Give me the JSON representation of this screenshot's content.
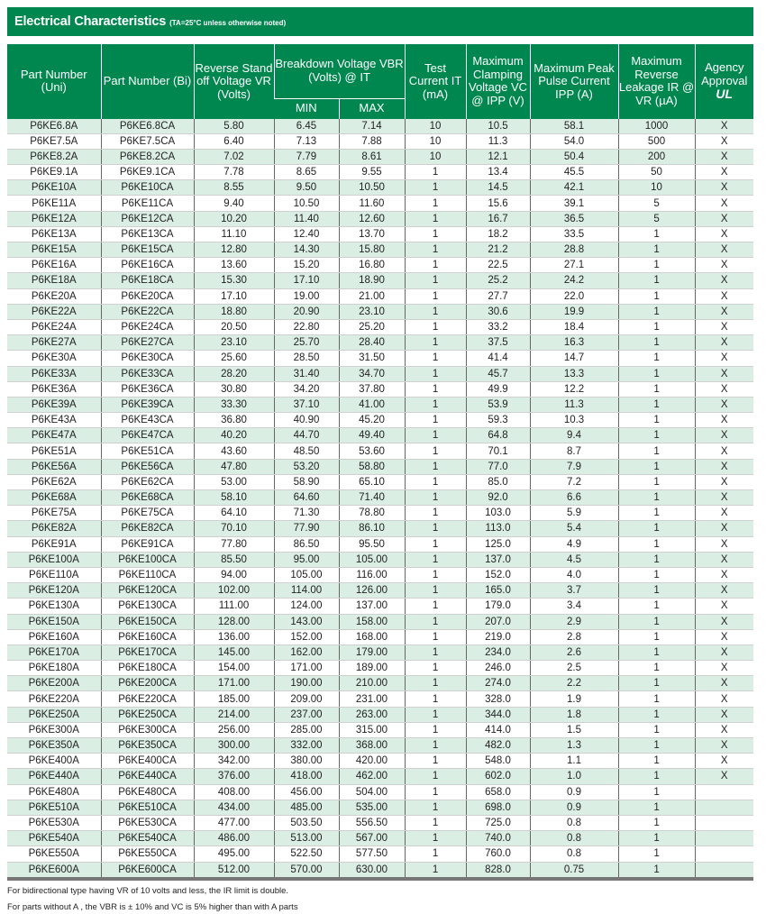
{
  "title": "Electrical Characteristics",
  "title_condition": "(TA=25°C unless otherwise noted)",
  "header": {
    "part_uni": "Part Number (Uni)",
    "part_bi": "Part Number (Bi)",
    "vr": "Reverse Stand off Voltage VR (Volts)",
    "vbr": "Breakdown Voltage VBR (Volts) @ IT",
    "min": "MIN",
    "max": "MAX",
    "it": "Test Current IT (mA)",
    "vc": "Maximum Clamping Voltage VC @ IPP (V)",
    "ipp": "Maximum Peak Pulse Current IPP (A)",
    "ir": "Maximum Reverse Leakage IR @ VR (µA)",
    "agency": "Agency Approval",
    "agency_logo": "UL"
  },
  "colors": {
    "header": "#00874f",
    "row_alt": "#dbeee4"
  },
  "rows": [
    [
      "P6KE6.8A",
      "P6KE6.8CA",
      "5.80",
      "6.45",
      "7.14",
      "10",
      "10.5",
      "58.1",
      "1000",
      "X"
    ],
    [
      "P6KE7.5A",
      "P6KE7.5CA",
      "6.40",
      "7.13",
      "7.88",
      "10",
      "11.3",
      "54.0",
      "500",
      "X"
    ],
    [
      "P6KE8.2A",
      "P6KE8.2CA",
      "7.02",
      "7.79",
      "8.61",
      "10",
      "12.1",
      "50.4",
      "200",
      "X"
    ],
    [
      "P6KE9.1A",
      "P6KE9.1CA",
      "7.78",
      "8.65",
      "9.55",
      "1",
      "13.4",
      "45.5",
      "50",
      "X"
    ],
    [
      "P6KE10A",
      "P6KE10CA",
      "8.55",
      "9.50",
      "10.50",
      "1",
      "14.5",
      "42.1",
      "10",
      "X"
    ],
    [
      "P6KE11A",
      "P6KE11CA",
      "9.40",
      "10.50",
      "11.60",
      "1",
      "15.6",
      "39.1",
      "5",
      "X"
    ],
    [
      "P6KE12A",
      "P6KE12CA",
      "10.20",
      "11.40",
      "12.60",
      "1",
      "16.7",
      "36.5",
      "5",
      "X"
    ],
    [
      "P6KE13A",
      "P6KE13CA",
      "11.10",
      "12.40",
      "13.70",
      "1",
      "18.2",
      "33.5",
      "1",
      "X"
    ],
    [
      "P6KE15A",
      "P6KE15CA",
      "12.80",
      "14.30",
      "15.80",
      "1",
      "21.2",
      "28.8",
      "1",
      "X"
    ],
    [
      "P6KE16A",
      "P6KE16CA",
      "13.60",
      "15.20",
      "16.80",
      "1",
      "22.5",
      "27.1",
      "1",
      "X"
    ],
    [
      "P6KE18A",
      "P6KE18CA",
      "15.30",
      "17.10",
      "18.90",
      "1",
      "25.2",
      "24.2",
      "1",
      "X"
    ],
    [
      "P6KE20A",
      "P6KE20CA",
      "17.10",
      "19.00",
      "21.00",
      "1",
      "27.7",
      "22.0",
      "1",
      "X"
    ],
    [
      "P6KE22A",
      "P6KE22CA",
      "18.80",
      "20.90",
      "23.10",
      "1",
      "30.6",
      "19.9",
      "1",
      "X"
    ],
    [
      "P6KE24A",
      "P6KE24CA",
      "20.50",
      "22.80",
      "25.20",
      "1",
      "33.2",
      "18.4",
      "1",
      "X"
    ],
    [
      "P6KE27A",
      "P6KE27CA",
      "23.10",
      "25.70",
      "28.40",
      "1",
      "37.5",
      "16.3",
      "1",
      "X"
    ],
    [
      "P6KE30A",
      "P6KE30CA",
      "25.60",
      "28.50",
      "31.50",
      "1",
      "41.4",
      "14.7",
      "1",
      "X"
    ],
    [
      "P6KE33A",
      "P6KE33CA",
      "28.20",
      "31.40",
      "34.70",
      "1",
      "45.7",
      "13.3",
      "1",
      "X"
    ],
    [
      "P6KE36A",
      "P6KE36CA",
      "30.80",
      "34.20",
      "37.80",
      "1",
      "49.9",
      "12.2",
      "1",
      "X"
    ],
    [
      "P6KE39A",
      "P6KE39CA",
      "33.30",
      "37.10",
      "41.00",
      "1",
      "53.9",
      "11.3",
      "1",
      "X"
    ],
    [
      "P6KE43A",
      "P6KE43CA",
      "36.80",
      "40.90",
      "45.20",
      "1",
      "59.3",
      "10.3",
      "1",
      "X"
    ],
    [
      "P6KE47A",
      "P6KE47CA",
      "40.20",
      "44.70",
      "49.40",
      "1",
      "64.8",
      "9.4",
      "1",
      "X"
    ],
    [
      "P6KE51A",
      "P6KE51CA",
      "43.60",
      "48.50",
      "53.60",
      "1",
      "70.1",
      "8.7",
      "1",
      "X"
    ],
    [
      "P6KE56A",
      "P6KE56CA",
      "47.80",
      "53.20",
      "58.80",
      "1",
      "77.0",
      "7.9",
      "1",
      "X"
    ],
    [
      "P6KE62A",
      "P6KE62CA",
      "53.00",
      "58.90",
      "65.10",
      "1",
      "85.0",
      "7.2",
      "1",
      "X"
    ],
    [
      "P6KE68A",
      "P6KE68CA",
      "58.10",
      "64.60",
      "71.40",
      "1",
      "92.0",
      "6.6",
      "1",
      "X"
    ],
    [
      "P6KE75A",
      "P6KE75CA",
      "64.10",
      "71.30",
      "78.80",
      "1",
      "103.0",
      "5.9",
      "1",
      "X"
    ],
    [
      "P6KE82A",
      "P6KE82CA",
      "70.10",
      "77.90",
      "86.10",
      "1",
      "113.0",
      "5.4",
      "1",
      "X"
    ],
    [
      "P6KE91A",
      "P6KE91CA",
      "77.80",
      "86.50",
      "95.50",
      "1",
      "125.0",
      "4.9",
      "1",
      "X"
    ],
    [
      "P6KE100A",
      "P6KE100CA",
      "85.50",
      "95.00",
      "105.00",
      "1",
      "137.0",
      "4.5",
      "1",
      "X"
    ],
    [
      "P6KE110A",
      "P6KE110CA",
      "94.00",
      "105.00",
      "116.00",
      "1",
      "152.0",
      "4.0",
      "1",
      "X"
    ],
    [
      "P6KE120A",
      "P6KE120CA",
      "102.00",
      "114.00",
      "126.00",
      "1",
      "165.0",
      "3.7",
      "1",
      "X"
    ],
    [
      "P6KE130A",
      "P6KE130CA",
      "111.00",
      "124.00",
      "137.00",
      "1",
      "179.0",
      "3.4",
      "1",
      "X"
    ],
    [
      "P6KE150A",
      "P6KE150CA",
      "128.00",
      "143.00",
      "158.00",
      "1",
      "207.0",
      "2.9",
      "1",
      "X"
    ],
    [
      "P6KE160A",
      "P6KE160CA",
      "136.00",
      "152.00",
      "168.00",
      "1",
      "219.0",
      "2.8",
      "1",
      "X"
    ],
    [
      "P6KE170A",
      "P6KE170CA",
      "145.00",
      "162.00",
      "179.00",
      "1",
      "234.0",
      "2.6",
      "1",
      "X"
    ],
    [
      "P6KE180A",
      "P6KE180CA",
      "154.00",
      "171.00",
      "189.00",
      "1",
      "246.0",
      "2.5",
      "1",
      "X"
    ],
    [
      "P6KE200A",
      "P6KE200CA",
      "171.00",
      "190.00",
      "210.00",
      "1",
      "274.0",
      "2.2",
      "1",
      "X"
    ],
    [
      "P6KE220A",
      "P6KE220CA",
      "185.00",
      "209.00",
      "231.00",
      "1",
      "328.0",
      "1.9",
      "1",
      "X"
    ],
    [
      "P6KE250A",
      "P6KE250CA",
      "214.00",
      "237.00",
      "263.00",
      "1",
      "344.0",
      "1.8",
      "1",
      "X"
    ],
    [
      "P6KE300A",
      "P6KE300CA",
      "256.00",
      "285.00",
      "315.00",
      "1",
      "414.0",
      "1.5",
      "1",
      "X"
    ],
    [
      "P6KE350A",
      "P6KE350CA",
      "300.00",
      "332.00",
      "368.00",
      "1",
      "482.0",
      "1.3",
      "1",
      "X"
    ],
    [
      "P6KE400A",
      "P6KE400CA",
      "342.00",
      "380.00",
      "420.00",
      "1",
      "548.0",
      "1.1",
      "1",
      "X"
    ],
    [
      "P6KE440A",
      "P6KE440CA",
      "376.00",
      "418.00",
      "462.00",
      "1",
      "602.0",
      "1.0",
      "1",
      "X"
    ],
    [
      "P6KE480A",
      "P6KE480CA",
      "408.00",
      "456.00",
      "504.00",
      "1",
      "658.0",
      "0.9",
      "1",
      ""
    ],
    [
      "P6KE510A",
      "P6KE510CA",
      "434.00",
      "485.00",
      "535.00",
      "1",
      "698.0",
      "0.9",
      "1",
      ""
    ],
    [
      "P6KE530A",
      "P6KE530CA",
      "477.00",
      "503.50",
      "556.50",
      "1",
      "725.0",
      "0.8",
      "1",
      ""
    ],
    [
      "P6KE540A",
      "P6KE540CA",
      "486.00",
      "513.00",
      "567.00",
      "1",
      "740.0",
      "0.8",
      "1",
      ""
    ],
    [
      "P6KE550A",
      "P6KE550CA",
      "495.00",
      "522.50",
      "577.50",
      "1",
      "760.0",
      "0.8",
      "1",
      ""
    ],
    [
      "P6KE600A",
      "P6KE600CA",
      "512.00",
      "570.00",
      "630.00",
      "1",
      "828.0",
      "0.75",
      "1",
      ""
    ]
  ],
  "notes": [
    "For bidirectional type having VR of 10 volts and less, the IR limit is double.",
    "For parts without A , the VBR is ± 10% and VC is 5% higher than with A parts"
  ]
}
